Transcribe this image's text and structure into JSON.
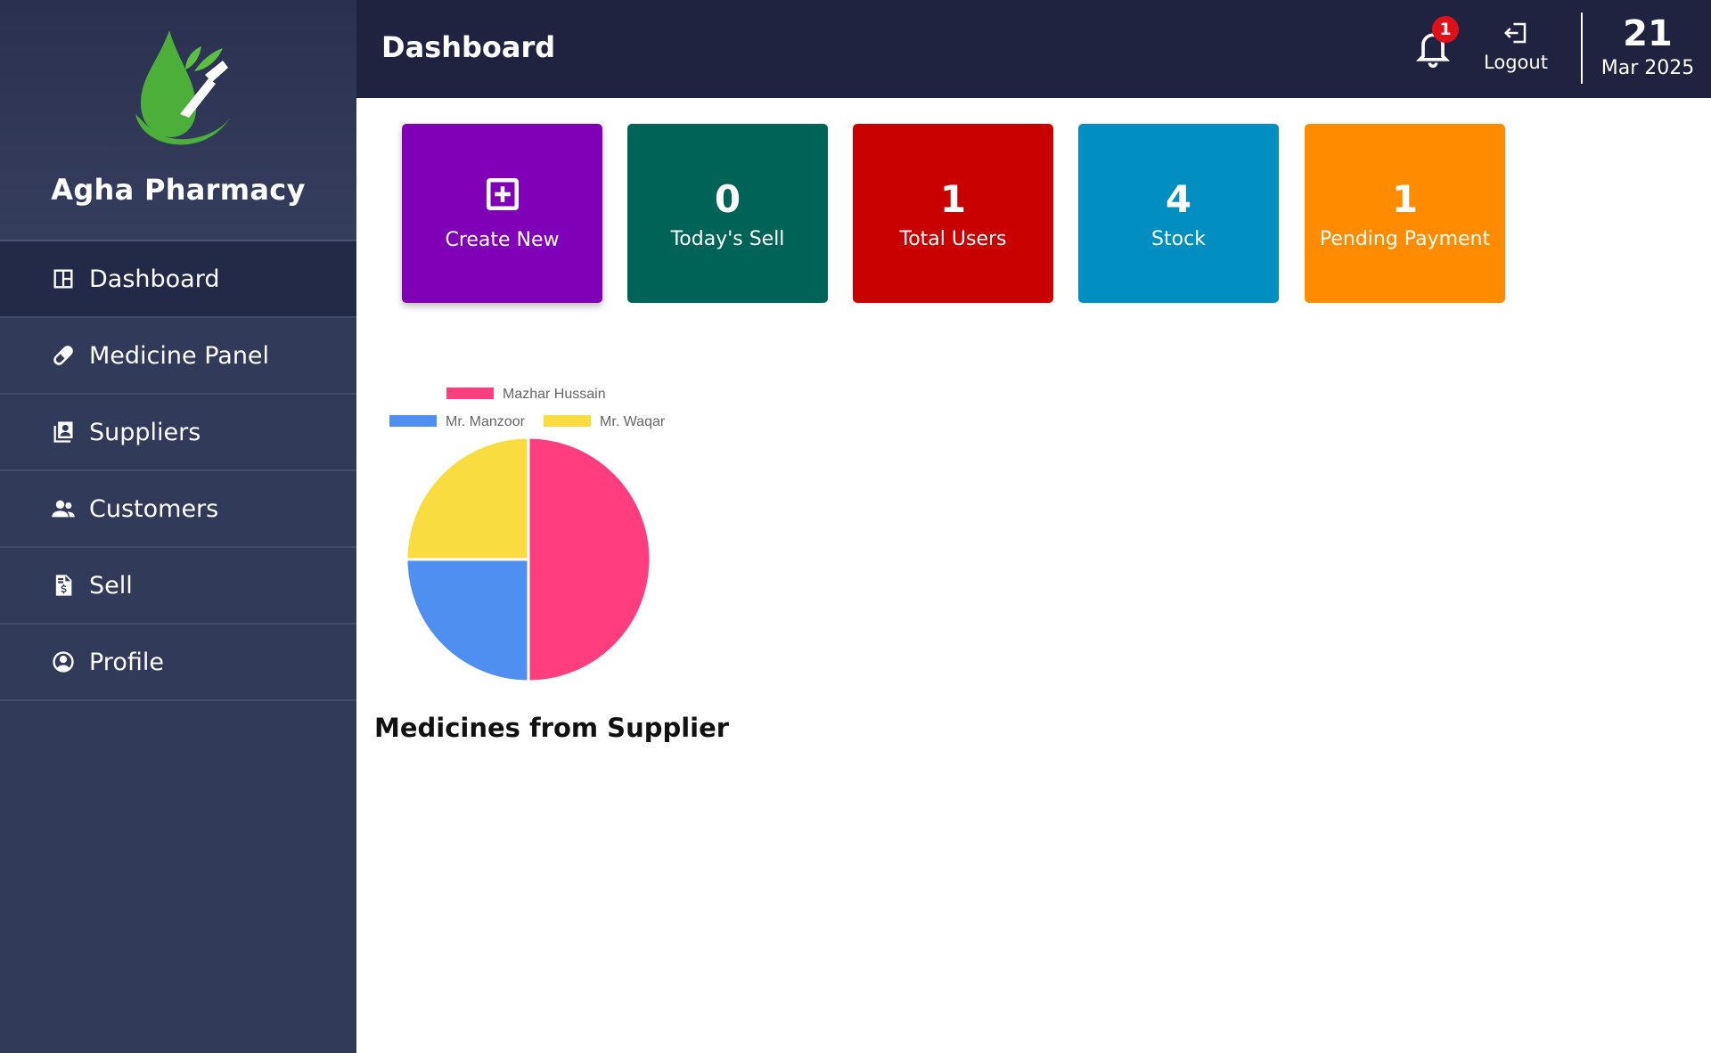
{
  "app": {
    "name": "Agha Pharmacy"
  },
  "sidebar": {
    "items": [
      {
        "label": "Dashboard",
        "icon": "dashboard-icon",
        "active": true
      },
      {
        "label": "Medicine Panel",
        "icon": "pill-icon"
      },
      {
        "label": "Suppliers",
        "icon": "contacts-icon"
      },
      {
        "label": "Customers",
        "icon": "users-icon"
      },
      {
        "label": "Sell",
        "icon": "invoice-dollar-icon"
      },
      {
        "label": "Profile",
        "icon": "user-circle-icon"
      }
    ]
  },
  "header": {
    "title": "Dashboard",
    "notification_count": "1",
    "logout_label": "Logout",
    "date_day": "21",
    "date_month_year": "Mar 2025"
  },
  "cards": [
    {
      "label": "Create New",
      "icon": "plus-square-icon",
      "color": "#8000b8"
    },
    {
      "value": "0",
      "label": "Today's Sell",
      "color": "#006358"
    },
    {
      "value": "1",
      "label": "Total Users",
      "color": "#c80000"
    },
    {
      "value": "4",
      "label": "Stock",
      "color": "#008fc0"
    },
    {
      "value": "1",
      "label": "Pending Payment",
      "color": "#ff8c00"
    }
  ],
  "chart_data": {
    "type": "pie",
    "title": "Medicines from Supplier",
    "categories": [
      "Mazhar Hussain",
      "Mr. Manzoor",
      "Mr. Waqar"
    ],
    "values": [
      2,
      1,
      1
    ],
    "colors": [
      "#ff3d7f",
      "#4f8fef",
      "#f9dc40"
    ],
    "legend": "top"
  }
}
